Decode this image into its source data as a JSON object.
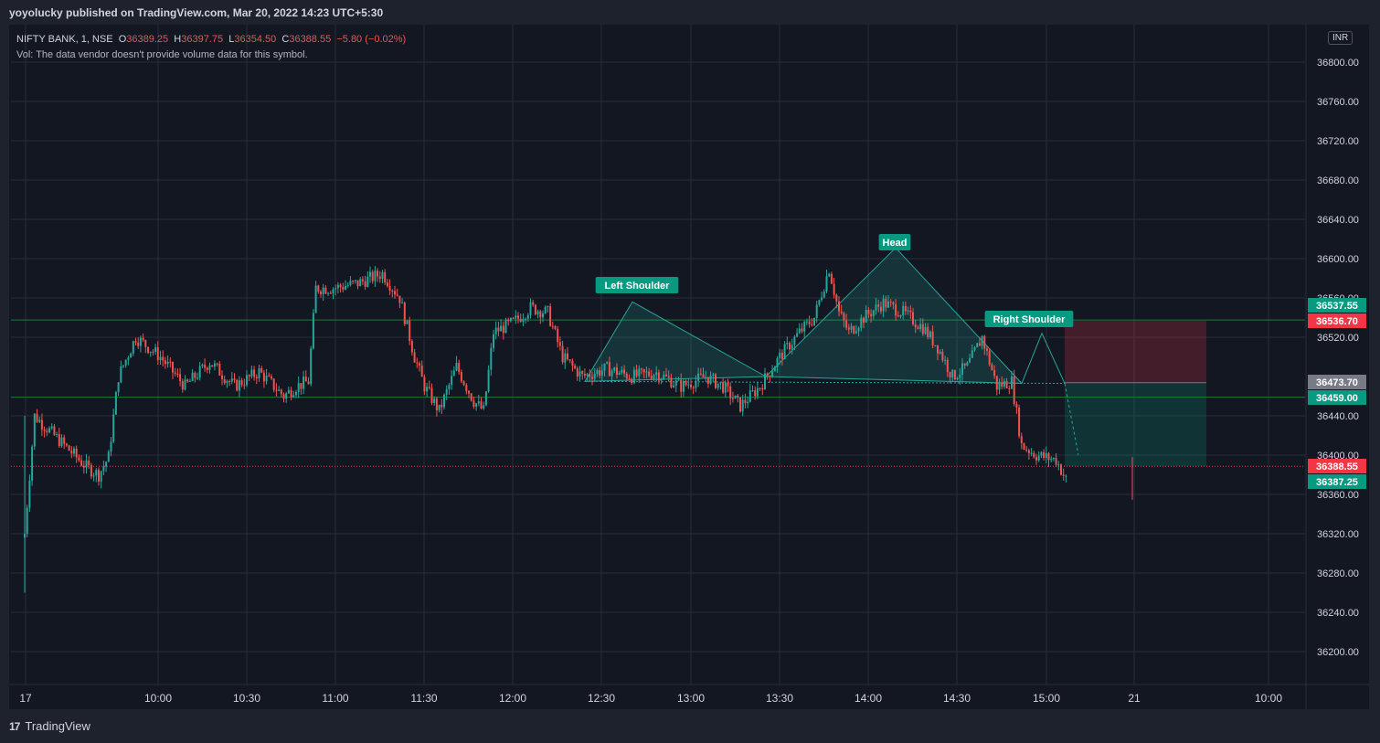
{
  "header": {
    "published": "yoyolucky published on TradingView.com, Mar 20, 2022 14:23 UTC+5:30"
  },
  "legend": {
    "symbol": "NIFTY BANK, 1, NSE",
    "open_label": "O",
    "open": "36389.25",
    "high_label": "H",
    "high": "36397.75",
    "low_label": "L",
    "low": "36354.50",
    "close_label": "C",
    "close": "36388.55",
    "change": "−5.80 (−0.02%)",
    "volume_note": "Vol: The data vendor doesn't provide volume data for this symbol."
  },
  "currency": "INR",
  "footer": {
    "logo": "17",
    "brand": "TradingView"
  },
  "colors": {
    "up": "#26a69a",
    "down": "#ef5350",
    "grid": "#2a2e39",
    "bg": "#131722"
  },
  "chart_data": {
    "type": "candlestick",
    "ylim": [
      36170,
      36830
    ],
    "y_ticks": [
      36800,
      36760,
      36720,
      36680,
      36640,
      36600,
      36560,
      36520,
      36440,
      36400,
      36360,
      36320,
      36280,
      36240,
      36200
    ],
    "y_tick_labels": [
      "36800.00",
      "36760.00",
      "36720.00",
      "36680.00",
      "36640.00",
      "36600.00",
      "36560.00",
      "36520.00",
      "36440.00",
      "36400.00",
      "36360.00",
      "36320.00",
      "36280.00",
      "36240.00",
      "36200.00"
    ],
    "x_ticks": [
      "17",
      "10:00",
      "10:30",
      "11:00",
      "11:30",
      "12:00",
      "12:30",
      "13:00",
      "13:30",
      "14:00",
      "14:30",
      "15:00",
      "21",
      "10:00"
    ],
    "price_lines": [
      {
        "label": "36537.55",
        "value": 36537.55,
        "color": "#089981"
      },
      {
        "label": "36536.70",
        "value": 36536.7,
        "color": "#f23645"
      },
      {
        "label": "36473.70",
        "value": 36473.7,
        "color": "#787b86"
      },
      {
        "label": "36459.00",
        "value": 36459.0,
        "color": "#089981"
      },
      {
        "label": "36388.55",
        "value": 36388.55,
        "color": "#f23645"
      },
      {
        "label": "36387.25",
        "value": 36387.25,
        "color": "#089981"
      }
    ],
    "pattern": {
      "name": "Head and Shoulders",
      "labels": [
        {
          "text": "Left Shoulder",
          "value": 36556
        },
        {
          "text": "Head",
          "value": 36611
        },
        {
          "text": "Right Shoulder",
          "value": 36524
        }
      ],
      "points": [
        36475,
        36556,
        36480,
        36611,
        36473,
        36524,
        36473
      ]
    },
    "position": {
      "entry": 36473.7,
      "stop": 36536.7,
      "target": 36388.55
    },
    "ohlc_last": {
      "open": 36389.25,
      "high": 36397.75,
      "low": 36354.5,
      "close": 36388.55
    },
    "path_keypoints": [
      [
        0,
        36320
      ],
      [
        4,
        36440
      ],
      [
        12,
        36420
      ],
      [
        25,
        36388
      ],
      [
        30,
        36380
      ],
      [
        34,
        36398
      ],
      [
        38,
        36480
      ],
      [
        45,
        36520
      ],
      [
        55,
        36500
      ],
      [
        65,
        36470
      ],
      [
        75,
        36495
      ],
      [
        85,
        36470
      ],
      [
        95,
        36485
      ],
      [
        105,
        36460
      ],
      [
        110,
        36470
      ],
      [
        115,
        36475
      ],
      [
        118,
        36570
      ],
      [
        125,
        36570
      ],
      [
        135,
        36575
      ],
      [
        145,
        36585
      ],
      [
        152,
        36560
      ],
      [
        158,
        36500
      ],
      [
        162,
        36470
      ],
      [
        168,
        36445
      ],
      [
        175,
        36490
      ],
      [
        182,
        36455
      ],
      [
        186,
        36445
      ],
      [
        190,
        36525
      ],
      [
        198,
        36535
      ],
      [
        205,
        36550
      ],
      [
        212,
        36545
      ],
      [
        218,
        36500
      ],
      [
        226,
        36480
      ],
      [
        236,
        36488
      ],
      [
        246,
        36480
      ],
      [
        256,
        36484
      ],
      [
        266,
        36470
      ],
      [
        276,
        36480
      ],
      [
        283,
        36470
      ],
      [
        290,
        36450
      ],
      [
        298,
        36470
      ],
      [
        306,
        36500
      ],
      [
        314,
        36525
      ],
      [
        320,
        36540
      ],
      [
        326,
        36590
      ],
      [
        330,
        36545
      ],
      [
        334,
        36525
      ],
      [
        340,
        36540
      ],
      [
        348,
        36555
      ],
      [
        356,
        36545
      ],
      [
        364,
        36530
      ],
      [
        370,
        36510
      ],
      [
        376,
        36480
      ],
      [
        382,
        36490
      ],
      [
        388,
        36520
      ],
      [
        394,
        36470
      ],
      [
        400,
        36475
      ],
      [
        404,
        36410
      ],
      [
        410,
        36400
      ],
      [
        418,
        36395
      ],
      [
        422,
        36375
      ]
    ]
  }
}
